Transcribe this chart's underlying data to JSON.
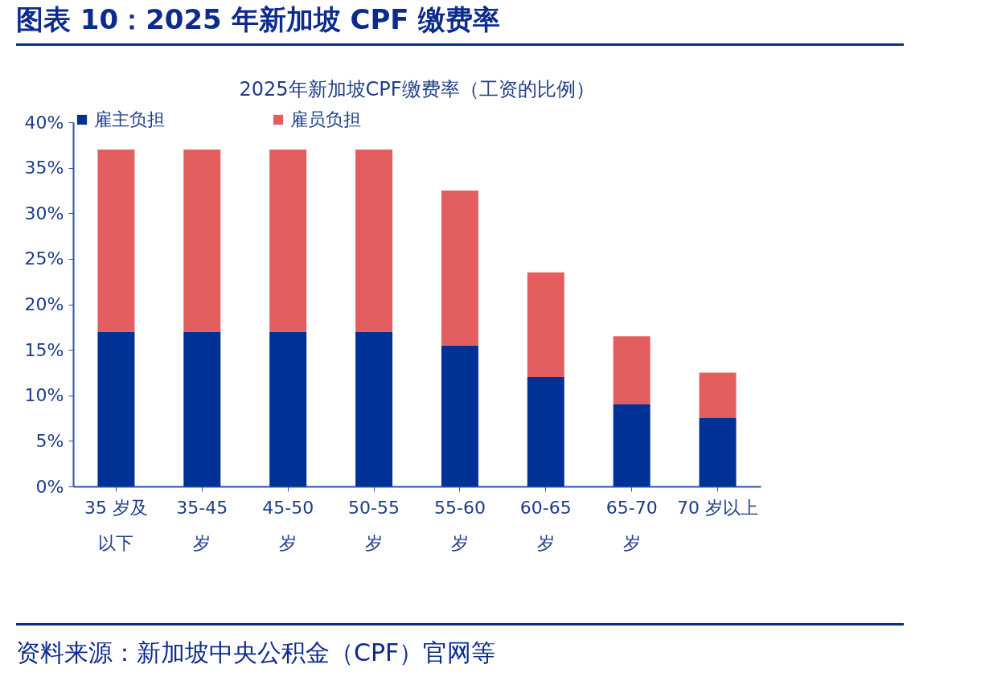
{
  "chart_data": {
    "type": "bar",
    "title": "图表 10：2025 年新加坡 CPF 缴费率",
    "subtitle": "2025年新加坡CPF缴费率（工资的比例）",
    "categories": [
      "35 岁及以下",
      "35-45 岁",
      "45-50 岁",
      "50-55 岁",
      "55-60 岁",
      "60-65 岁",
      "65-70 岁",
      "70 岁以上"
    ],
    "series": [
      {
        "name": "雇主负担",
        "color": "#003296",
        "values": [
          17,
          17,
          17,
          17,
          15.5,
          12,
          9,
          7.5
        ]
      },
      {
        "name": "雇员负担",
        "color": "#e35f5f",
        "values": [
          20,
          20,
          20,
          20,
          17,
          11.5,
          7.5,
          5
        ]
      }
    ],
    "stacked": true,
    "ylim": [
      0,
      40
    ],
    "yticks": [
      {
        "value": 0,
        "label": "0%"
      },
      {
        "value": 5,
        "label": "5%"
      },
      {
        "value": 10,
        "label": "10%"
      },
      {
        "value": 15,
        "label": "15%"
      },
      {
        "value": 20,
        "label": "20%"
      },
      {
        "value": 25,
        "label": "25%"
      },
      {
        "value": 30,
        "label": "30%"
      },
      {
        "value": 35,
        "label": "35%"
      },
      {
        "value": 40,
        "label": "40%"
      }
    ],
    "grid": false,
    "legend": "top",
    "annotations": [
      "资料来源：新加坡中央公积金（CPF）官网等"
    ]
  }
}
